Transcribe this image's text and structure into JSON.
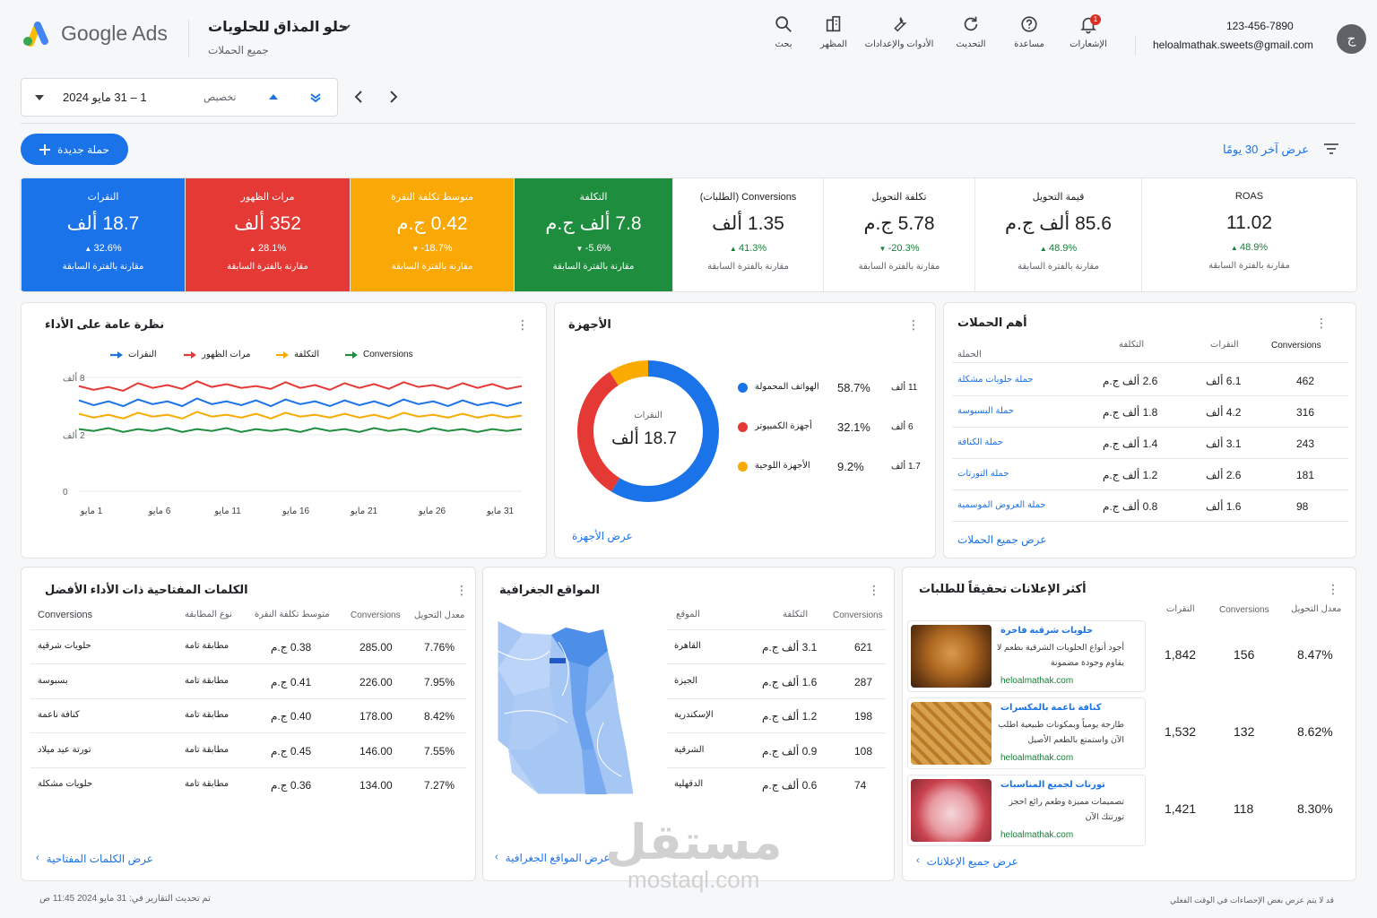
{
  "header": {
    "logo_text": "Google Ads",
    "account_name": "حلو المذاق للحلويات",
    "account_sub": "جميع الحملات",
    "icons": [
      {
        "label": "بحث",
        "icon": "search-icon"
      },
      {
        "label": "المظهر",
        "icon": "appearance-icon"
      },
      {
        "label": "الأدوات والإعدادات",
        "icon": "wrench-icon"
      },
      {
        "label": "التحديث",
        "icon": "refresh-icon"
      },
      {
        "label": "مساعدة",
        "icon": "help-icon"
      },
      {
        "label": "الإشعارات",
        "icon": "bell-icon"
      }
    ],
    "notification_count": "1",
    "phone": "123-456-7890",
    "email": "heloalmathak.sweets@gmail.com",
    "avatar_letter": "ج"
  },
  "date_bar": {
    "range": "1 – 31 مايو 2024",
    "custom_label": "تخصيص"
  },
  "actions": {
    "new_campaign": "حملة جديدة",
    "last_30": "عرض آخر 30 يومًا"
  },
  "kpis": [
    {
      "label": "النقرات",
      "value": "18.7 ألف",
      "delta": "32.6%",
      "dir": "up",
      "compare": "مقارنة بالفترة السابقة",
      "color": "#1a73e8"
    },
    {
      "label": "مرات الظهور",
      "value": "352 ألف",
      "delta": "28.1%",
      "dir": "up",
      "compare": "مقارنة بالفترة السابقة",
      "color": "#e53935"
    },
    {
      "label": "متوسط تكلفة النقرة",
      "value": "0.42 ج.م",
      "delta": "-18.7%",
      "dir": "down",
      "compare": "مقارنة بالفترة السابقة",
      "color": "#f9a806"
    },
    {
      "label": "التكلفة",
      "value": "7.8 ألف ج.م",
      "delta": "-5.6%",
      "dir": "down",
      "compare": "مقارنة بالفترة السابقة",
      "color": "#1e8e3e"
    },
    {
      "label": "Conversions (الطلبات)",
      "value": "1.35 ألف",
      "delta": "41.3%",
      "dir": "up",
      "compare": "مقارنة بالفترة السابقة"
    },
    {
      "label": "تكلفة التحويل",
      "value": "5.78 ج.م",
      "delta": "-20.3%",
      "dir": "down",
      "compare": "مقارنة بالفترة السابقة"
    },
    {
      "label": "قيمة التحويل",
      "value": "85.6 ألف ج.م",
      "delta": "48.9%",
      "dir": "up",
      "compare": "مقارنة بالفترة السابقة"
    },
    {
      "label": "ROAS",
      "value": "11.02",
      "delta": "48.9%",
      "dir": "up",
      "compare": "مقارنة بالفترة السابقة"
    }
  ],
  "overview": {
    "title": "نظرة عامة على الأداء",
    "legend": [
      {
        "name": "النقرات",
        "color": "#1a73e8"
      },
      {
        "name": "مرات الظهور",
        "color": "#e53935"
      },
      {
        "name": "التكلفة",
        "color": "#f9ab00"
      },
      {
        "name": "Conversions",
        "color": "#1e8e3e"
      }
    ],
    "y_ticks": [
      "8 ألف",
      "2 ألف",
      "0"
    ],
    "x_ticks": [
      "1 مايو",
      "6 مايو",
      "11 مايو",
      "16 مايو",
      "21 مايو",
      "26 مايو",
      "31 مايو"
    ]
  },
  "chart_data": {
    "type": "line",
    "title": "نظرة عامة على الأداء",
    "x": [
      "1 مايو",
      "",
      "",
      "",
      "",
      "6 مايو",
      "",
      "",
      "",
      "",
      "11 مايو",
      "",
      "",
      "",
      "",
      "16 مايو",
      "",
      "",
      "",
      "",
      "21 مايو",
      "",
      "",
      "",
      "",
      "26 مايو",
      "",
      "",
      "",
      "",
      "31 مايو"
    ],
    "y_ticks": [
      "0",
      "2 ألف",
      "8 ألف"
    ],
    "series": [
      {
        "name": "مرات الظهور",
        "values": [
          7.1,
          6.7,
          7.0,
          6.6,
          7.4,
          6.9,
          7.2,
          6.8,
          7.6,
          7.0,
          7.3,
          6.9,
          7.1,
          6.8,
          7.5,
          6.9,
          7.2,
          6.7,
          7.4,
          6.9,
          7.3,
          6.8,
          7.5,
          7.0,
          7.2,
          6.8,
          7.4,
          6.9,
          7.3,
          6.8,
          7.1
        ]
      },
      {
        "name": "النقرات",
        "values": [
          5.6,
          5.1,
          5.5,
          5.0,
          5.7,
          5.2,
          5.5,
          5.0,
          5.8,
          5.2,
          5.5,
          5.1,
          5.6,
          5.0,
          5.7,
          5.2,
          5.5,
          5.0,
          5.6,
          5.1,
          5.5,
          5.0,
          5.7,
          5.2,
          5.5,
          5.0,
          5.6,
          5.1,
          5.4,
          5.0,
          5.4
        ]
      },
      {
        "name": "التكلفة",
        "values": [
          4.2,
          3.8,
          4.1,
          3.7,
          4.3,
          3.9,
          4.1,
          3.7,
          4.4,
          3.9,
          4.1,
          3.8,
          4.2,
          3.7,
          4.3,
          3.9,
          4.1,
          3.8,
          4.2,
          3.8,
          4.1,
          3.7,
          4.3,
          3.9,
          4.1,
          3.8,
          4.2,
          3.8,
          4.1,
          3.8,
          4.0
        ]
      },
      {
        "name": "Conversions",
        "values": [
          2.6,
          2.4,
          2.7,
          2.3,
          2.6,
          2.4,
          2.7,
          2.3,
          2.6,
          2.4,
          2.7,
          2.3,
          2.6,
          2.4,
          2.6,
          2.3,
          2.7,
          2.4,
          2.6,
          2.3,
          2.7,
          2.4,
          2.6,
          2.3,
          2.7,
          2.4,
          2.6,
          2.3,
          2.6,
          2.4,
          2.6
        ]
      }
    ]
  },
  "devices": {
    "title": "الأجهزة",
    "center_label": "النقرات",
    "center_value": "18.7 ألف",
    "items": [
      {
        "name": "الهواتف المحمولة",
        "pct": "58.7%",
        "count": "11 ألف",
        "color": "#1a73e8",
        "value": 58.7
      },
      {
        "name": "أجهزة الكمبيوتر",
        "pct": "32.1%",
        "count": "6 ألف",
        "color": "#e53935",
        "value": 32.1
      },
      {
        "name": "الأجهزة اللوحية",
        "pct": "9.2%",
        "count": "1.7 ألف",
        "color": "#f9ab00",
        "value": 9.2
      }
    ],
    "link": "عرض الأجهزة"
  },
  "campaigns": {
    "title": "أهم الحملات",
    "headers": {
      "campaign": "الحملة",
      "cost": "التكلفة",
      "clicks": "النقرات",
      "conversions": "Conversions"
    },
    "rows": [
      {
        "name": "حملة حلويات مشكلة",
        "cost": "2.6 ألف ج.م",
        "clicks": "6.1 ألف",
        "conv": "462"
      },
      {
        "name": "حملة البسبوسة",
        "cost": "1.8 ألف ج.م",
        "clicks": "4.2 ألف",
        "conv": "316"
      },
      {
        "name": "حملة الكنافة",
        "cost": "1.4 ألف ج.م",
        "clicks": "3.1 ألف",
        "conv": "243"
      },
      {
        "name": "حملة التورتات",
        "cost": "1.2 ألف ج.م",
        "clicks": "2.6 ألف",
        "conv": "181"
      },
      {
        "name": "حملة العروض الموسمية",
        "cost": "0.8 ألف ج.م",
        "clicks": "1.6 ألف",
        "conv": "98"
      }
    ],
    "link": "عرض جميع الحملات"
  },
  "keywords": {
    "title": "الكلمات المفتاحية ذات الأداء الأفضل",
    "headers": {
      "conversions": "Conversions",
      "match": "نوع المطابقة",
      "cpc": "متوسط تكلفة النقرة",
      "conv2": "Conversions",
      "rate": "معدل التحويل"
    },
    "rows": [
      {
        "kw": "حلويات شرقية",
        "match": "مطابقة تامة",
        "cpc": "0.38 ج.م",
        "conv": "285.00",
        "rate": "7.76%"
      },
      {
        "kw": "بسبوسة",
        "match": "مطابقة تامة",
        "cpc": "0.41 ج.م",
        "conv": "226.00",
        "rate": "7.95%"
      },
      {
        "kw": "كنافة ناعمة",
        "match": "مطابقة تامة",
        "cpc": "0.40 ج.م",
        "conv": "178.00",
        "rate": "8.42%"
      },
      {
        "kw": "تورتة عيد ميلاد",
        "match": "مطابقة تامة",
        "cpc": "0.45 ج.م",
        "conv": "146.00",
        "rate": "7.55%"
      },
      {
        "kw": "حلويات مشكلة",
        "match": "مطابقة تامة",
        "cpc": "0.36 ج.م",
        "conv": "134.00",
        "rate": "7.27%"
      }
    ],
    "link": "عرض الكلمات المفتاحية"
  },
  "geo": {
    "title": "المواقع الجغرافية",
    "headers": {
      "location": "الموقع",
      "cost": "التكلفة",
      "conversions": "Conversions"
    },
    "rows": [
      {
        "loc": "القاهرة",
        "cost": "3.1 ألف ج.م",
        "conv": "621"
      },
      {
        "loc": "الجيزة",
        "cost": "1.6 ألف ج.م",
        "conv": "287"
      },
      {
        "loc": "الإسكندرية",
        "cost": "1.2 ألف ج.م",
        "conv": "198"
      },
      {
        "loc": "الشرقية",
        "cost": "0.9 ألف ج.م",
        "conv": "108"
      },
      {
        "loc": "الدقهلية",
        "cost": "0.6 ألف ج.م",
        "conv": "74"
      }
    ],
    "link": "عرض المواقع الجغرافية"
  },
  "ads": {
    "title": "أكثر الإعلانات تحقيقاً للطلبات",
    "headers": {
      "clicks": "النقرات",
      "conversions": "Conversions",
      "rate": "معدل التحويل"
    },
    "rows": [
      {
        "title": "حلويات شرقية فاخرة",
        "desc": "أجود أنواع الحلويات الشرقية بطعم لا يقاوم وجودة مضمونة",
        "url": "heloalmathak.com",
        "clicks": "1,842",
        "conv": "156",
        "rate": "8.47%"
      },
      {
        "title": "كنافة ناعمة بالمكسرات",
        "desc": "طازجة يومياً وبمكونات طبيعية اطلب الآن واستمتع بالطعم الأصيل",
        "url": "heloalmathak.com",
        "clicks": "1,532",
        "conv": "132",
        "rate": "8.62%"
      },
      {
        "title": "تورتات لجميع المناسبات",
        "desc": "تصميمات مميزة وطعم رائع احجز تورتتك الآن",
        "url": "heloalmathak.com",
        "clicks": "1,421",
        "conv": "118",
        "rate": "8.30%"
      }
    ],
    "link": "عرض جميع الإعلانات"
  },
  "footer": {
    "updated": "تم تحديث التقارير في: 31 مايو 2024 11:45 ص",
    "note": "قد لا يتم عرض بعض الإحصاءات في الوقت الفعلي"
  },
  "watermark": {
    "ar": "مستقل",
    "en": "mostaql.com"
  }
}
